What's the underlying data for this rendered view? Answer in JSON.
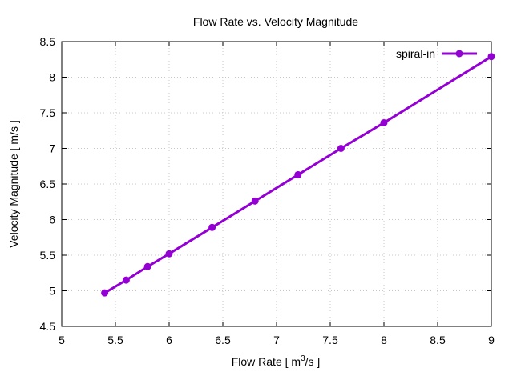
{
  "chart_data": {
    "type": "line",
    "title": "Flow Rate vs. Velocity Magnitude",
    "xlabel": "Flow Rate [ m",
    "xlabel_sup": "3",
    "xlabel_suffix": "/s ]",
    "ylabel": "Velocity Magnitude [ m/s ]",
    "xlim": [
      5,
      9
    ],
    "ylim": [
      4.5,
      8.5
    ],
    "xticks": [
      "5",
      "5.5",
      "6",
      "6.5",
      "7",
      "7.5",
      "8",
      "8.5",
      "9"
    ],
    "yticks": [
      "4.5",
      "5",
      "5.5",
      "6",
      "6.5",
      "7",
      "7.5",
      "8",
      "8.5"
    ],
    "grid": true,
    "legend_position": "top-right",
    "series": [
      {
        "name": "spiral-in",
        "color": "#9400d3",
        "x": [
          5.4,
          5.6,
          5.8,
          6.0,
          6.4,
          6.8,
          7.2,
          7.6,
          8.0,
          9.0
        ],
        "y": [
          4.97,
          5.15,
          5.34,
          5.52,
          5.89,
          6.26,
          6.63,
          7.0,
          7.36,
          8.29
        ]
      }
    ]
  }
}
